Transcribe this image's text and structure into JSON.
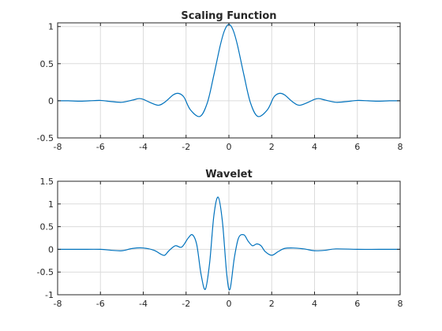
{
  "chart_data": [
    {
      "type": "line",
      "title": "Scaling Function",
      "xlabel": "",
      "ylabel": "",
      "xlim": [
        -8,
        8
      ],
      "ylim": [
        -0.5,
        1.05
      ],
      "xticks": [
        -8,
        -6,
        -4,
        -2,
        0,
        2,
        4,
        6,
        8
      ],
      "xtick_labels": [
        "-8",
        "-6",
        "-4",
        "-2",
        "0",
        "2",
        "4",
        "6",
        "8"
      ],
      "yticks": [
        -0.5,
        0,
        0.5,
        1
      ],
      "ytick_labels": [
        "-0.5",
        "0",
        "0.5",
        "1"
      ],
      "grid": true,
      "color": "#0072BD",
      "series": [
        {
          "x": [
            -8,
            -7.5,
            -7,
            -6.5,
            -6,
            -5.5,
            -5,
            -4.5,
            -4.2,
            -4,
            -3.7,
            -3.3,
            -3,
            -2.6,
            -2.35,
            -2.1,
            -1.8,
            -1.35,
            -1.0,
            -0.7,
            -0.4,
            -0.2,
            0,
            0.2,
            0.4,
            0.7,
            1.0,
            1.35,
            1.8,
            2.1,
            2.35,
            2.6,
            3,
            3.3,
            3.7,
            4,
            4.2,
            4.5,
            5,
            5.5,
            6,
            6.5,
            7,
            7.5,
            8
          ],
          "y": [
            0,
            0,
            -0.005,
            0,
            0.005,
            -0.01,
            -0.02,
            0.01,
            0.03,
            0.02,
            -0.02,
            -0.06,
            -0.02,
            0.08,
            0.1,
            0.05,
            -0.12,
            -0.21,
            -0.02,
            0.35,
            0.75,
            0.95,
            1.03,
            0.95,
            0.75,
            0.35,
            -0.02,
            -0.21,
            -0.12,
            0.05,
            0.1,
            0.08,
            -0.02,
            -0.06,
            -0.02,
            0.02,
            0.03,
            0.01,
            -0.02,
            -0.01,
            0.005,
            0,
            -0.005,
            0,
            0
          ]
        }
      ]
    },
    {
      "type": "line",
      "title": "Wavelet",
      "xlabel": "",
      "ylabel": "",
      "xlim": [
        -8,
        8
      ],
      "ylim": [
        -1,
        1.5
      ],
      "xticks": [
        -8,
        -6,
        -4,
        -2,
        0,
        2,
        4,
        6,
        8
      ],
      "xtick_labels": [
        "-8",
        "-6",
        "-4",
        "-2",
        "0",
        "2",
        "4",
        "6",
        "8"
      ],
      "yticks": [
        -1,
        -0.5,
        0,
        0.5,
        1,
        1.5
      ],
      "ytick_labels": [
        "-1",
        "-0.5",
        "0",
        "0.5",
        "1",
        "1.5"
      ],
      "grid": true,
      "color": "#0072BD",
      "series": [
        {
          "x": [
            -8,
            -7,
            -6,
            -5.5,
            -5,
            -4.5,
            -4,
            -3.5,
            -3.2,
            -3,
            -2.8,
            -2.5,
            -2.2,
            -1.9,
            -1.7,
            -1.5,
            -1.3,
            -1.1,
            -0.9,
            -0.7,
            -0.5,
            -0.3,
            -0.1,
            0.05,
            0.25,
            0.45,
            0.7,
            0.9,
            1.1,
            1.3,
            1.5,
            1.7,
            2,
            2.3,
            2.6,
            3,
            3.5,
            4,
            4.5,
            5,
            6,
            7,
            8
          ],
          "y": [
            0,
            0,
            0,
            -0.02,
            -0.03,
            0.02,
            0.03,
            -0.02,
            -0.1,
            -0.13,
            -0.03,
            0.08,
            0.05,
            0.25,
            0.32,
            0.1,
            -0.55,
            -0.88,
            -0.3,
            0.75,
            1.15,
            0.6,
            -0.55,
            -0.88,
            -0.2,
            0.25,
            0.32,
            0.18,
            0.08,
            0.12,
            0.08,
            -0.05,
            -0.13,
            -0.05,
            0.02,
            0.03,
            0.01,
            -0.03,
            -0.02,
            0.01,
            0,
            0,
            0
          ]
        }
      ]
    }
  ]
}
